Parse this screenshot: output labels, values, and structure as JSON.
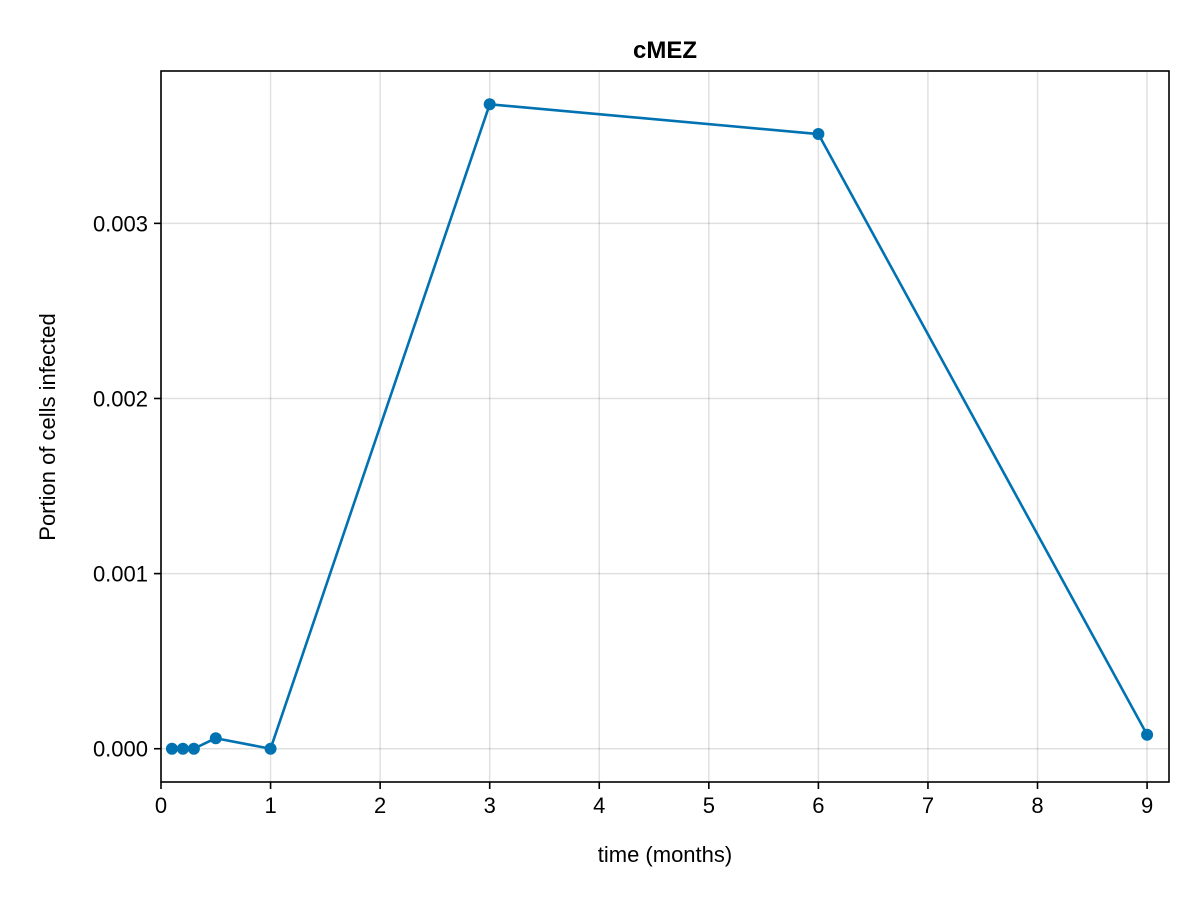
{
  "chart_data": {
    "type": "line",
    "title": "cMEZ",
    "xlabel": "time (months)",
    "ylabel": "Portion of cells infected",
    "xlim": [
      0,
      9.2
    ],
    "ylim": [
      -0.00019,
      0.00387
    ],
    "xticks": [
      0,
      1,
      2,
      3,
      4,
      5,
      6,
      7,
      8,
      9
    ],
    "xtick_labels": [
      "0",
      "1",
      "2",
      "3",
      "4",
      "5",
      "6",
      "7",
      "8",
      "9"
    ],
    "yticks": [
      0,
      0.001,
      0.002,
      0.003
    ],
    "ytick_labels": [
      "0.000",
      "0.001",
      "0.002",
      "0.003"
    ],
    "grid": true,
    "legend": "none",
    "series": [
      {
        "color": "#0072b2",
        "marker": "circle",
        "x": [
          0.1,
          0.2,
          0.3,
          0.5,
          1,
          3,
          6,
          9
        ],
        "y": [
          0.0,
          0.0,
          0.0,
          6e-05,
          0.0,
          0.00368,
          0.00351,
          8e-05
        ]
      }
    ]
  }
}
